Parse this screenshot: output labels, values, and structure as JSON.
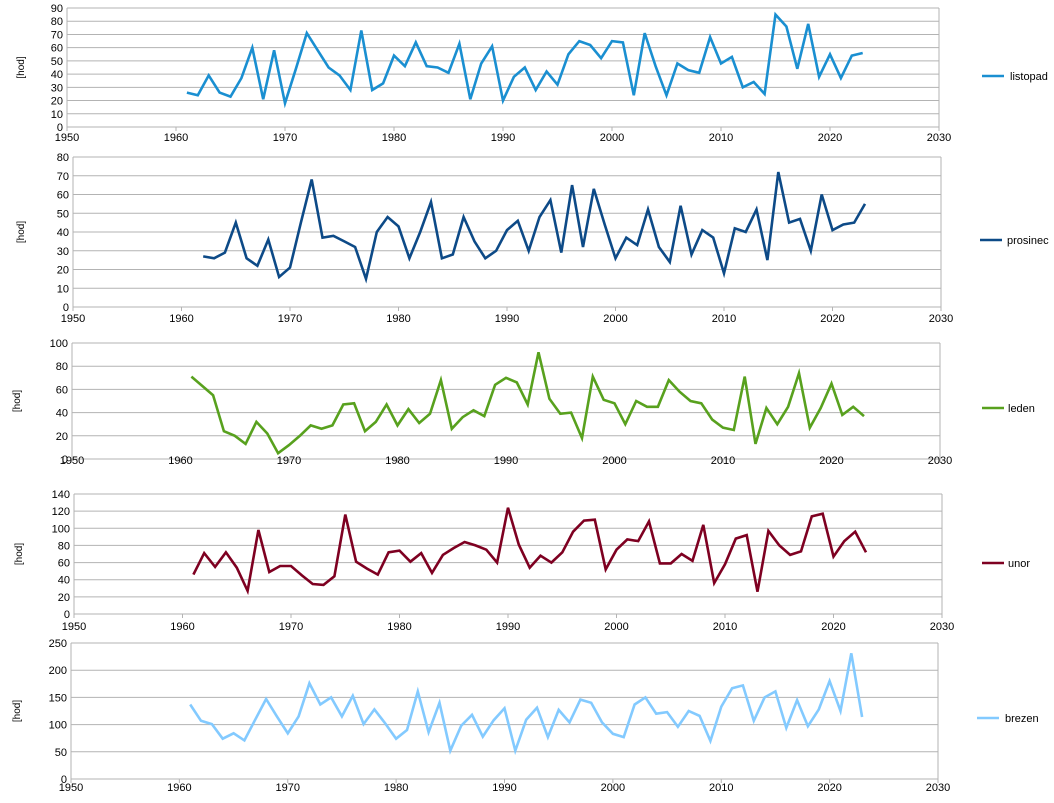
{
  "chart_data": [
    {
      "type": "line",
      "series": [
        {
          "name": "listopad",
          "color": "#1a8fd1",
          "x": [
            1961,
            1962,
            1963,
            1964,
            1965,
            1966,
            1967,
            1968,
            1969,
            1970,
            1971,
            1972,
            1973,
            1974,
            1975,
            1976,
            1977,
            1978,
            1979,
            1980,
            1981,
            1982,
            1983,
            1984,
            1985,
            1986,
            1987,
            1988,
            1989,
            1990,
            1991,
            1992,
            1993,
            1994,
            1995,
            1996,
            1997,
            1998,
            1999,
            2000,
            2001,
            2002,
            2003,
            2004,
            2005,
            2006,
            2007,
            2008,
            2009,
            2010,
            2011,
            2012,
            2013,
            2014,
            2015,
            2016,
            2017,
            2018,
            2019,
            2020,
            2021,
            2022,
            2023
          ],
          "values": [
            26,
            24,
            39,
            26,
            23,
            37,
            60,
            21,
            58,
            18,
            44,
            71,
            58,
            45,
            39,
            28,
            73,
            28,
            33,
            54,
            46,
            64,
            46,
            45,
            41,
            63,
            21,
            48,
            61,
            20,
            38,
            45,
            28,
            42,
            32,
            55,
            65,
            62,
            52,
            65,
            64,
            24,
            71,
            46,
            24,
            48,
            43,
            41,
            68,
            48,
            53,
            30,
            34,
            25,
            85,
            76,
            44,
            78,
            38,
            55,
            37,
            54,
            56
          ]
        }
      ],
      "xlim": [
        1950,
        2030
      ],
      "xticks": [
        1950,
        1960,
        1970,
        1980,
        1990,
        2000,
        2010,
        2020,
        2030
      ],
      "ylim": [
        0,
        90
      ],
      "yticks": [
        0,
        10,
        20,
        30,
        40,
        50,
        60,
        70,
        80,
        90
      ],
      "ylabel": "[hod]",
      "grid": true,
      "legend": "right"
    },
    {
      "type": "line",
      "series": [
        {
          "name": "prosinec",
          "color": "#0d4a87",
          "x": [
            1962,
            1963,
            1964,
            1965,
            1966,
            1967,
            1968,
            1969,
            1970,
            1971,
            1972,
            1973,
            1974,
            1975,
            1976,
            1977,
            1978,
            1979,
            1980,
            1981,
            1982,
            1983,
            1984,
            1985,
            1986,
            1987,
            1988,
            1989,
            1990,
            1991,
            1992,
            1993,
            1994,
            1995,
            1996,
            1997,
            1998,
            1999,
            2000,
            2001,
            2002,
            2003,
            2004,
            2005,
            2006,
            2007,
            2008,
            2009,
            2010,
            2011,
            2012,
            2013,
            2014,
            2015,
            2016,
            2017,
            2018,
            2019,
            2020,
            2021,
            2022,
            2023
          ],
          "values": [
            27,
            26,
            29,
            45,
            26,
            22,
            36,
            16,
            21,
            45,
            68,
            37,
            38,
            35,
            32,
            15,
            40,
            48,
            43,
            26,
            40,
            56,
            26,
            28,
            48,
            35,
            26,
            30,
            41,
            46,
            30,
            48,
            57,
            29,
            65,
            32,
            63,
            44,
            26,
            37,
            33,
            52,
            32,
            24,
            54,
            28,
            41,
            37,
            18,
            42,
            40,
            52,
            25,
            72,
            45,
            47,
            30,
            60,
            41,
            44,
            45,
            55
          ]
        }
      ],
      "xlim": [
        1950,
        2030
      ],
      "xticks": [
        1950,
        1960,
        1970,
        1980,
        1990,
        2000,
        2010,
        2020,
        2030
      ],
      "ylim": [
        0,
        80
      ],
      "yticks": [
        0,
        10,
        20,
        30,
        40,
        50,
        60,
        70,
        80
      ],
      "ylabel": "[hod]",
      "grid": true,
      "legend": "right"
    },
    {
      "type": "line",
      "series": [
        {
          "name": "leden",
          "color": "#58a11e",
          "x": [
            1961,
            1962,
            1963,
            1964,
            1965,
            1966,
            1967,
            1968,
            1969,
            1970,
            1971,
            1972,
            1973,
            1974,
            1975,
            1976,
            1977,
            1978,
            1979,
            1980,
            1981,
            1982,
            1983,
            1984,
            1985,
            1986,
            1987,
            1988,
            1989,
            1990,
            1991,
            1992,
            1993,
            1994,
            1995,
            1996,
            1997,
            1998,
            1999,
            2000,
            2001,
            2002,
            2003,
            2004,
            2005,
            2006,
            2007,
            2008,
            2009,
            2010,
            2011,
            2012,
            2013,
            2014,
            2015,
            2016,
            2017,
            2018,
            2019,
            2020,
            2021,
            2022,
            2023
          ],
          "values": [
            71,
            63,
            55,
            24,
            20,
            13,
            32,
            22,
            5,
            12,
            20,
            29,
            26,
            29,
            47,
            48,
            24,
            32,
            47,
            29,
            43,
            31,
            39,
            68,
            26,
            36,
            42,
            37,
            64,
            70,
            66,
            47,
            92,
            52,
            39,
            40,
            18,
            71,
            51,
            48,
            30,
            50,
            45,
            45,
            68,
            58,
            50,
            48,
            34,
            27,
            25,
            71,
            13,
            44,
            30,
            45,
            74,
            27,
            44,
            65,
            38,
            45,
            37
          ]
        }
      ],
      "xlim": [
        1950,
        2030
      ],
      "xticks": [
        1950,
        1960,
        1970,
        1980,
        1990,
        2000,
        2010,
        2020,
        2030
      ],
      "ylim": [
        0,
        100
      ],
      "yticks": [
        0,
        20,
        40,
        60,
        80,
        100
      ],
      "ylabel": "[hod]",
      "grid": true,
      "legend": "right"
    },
    {
      "type": "line",
      "series": [
        {
          "name": "unor",
          "color": "#7e0021",
          "x": [
            1961,
            1962,
            1963,
            1964,
            1965,
            1966,
            1967,
            1968,
            1969,
            1970,
            1971,
            1972,
            1973,
            1974,
            1975,
            1976,
            1977,
            1978,
            1979,
            1980,
            1981,
            1982,
            1983,
            1984,
            1985,
            1986,
            1987,
            1988,
            1989,
            1990,
            1991,
            1992,
            1993,
            1994,
            1995,
            1996,
            1997,
            1998,
            1999,
            2000,
            2001,
            2002,
            2003,
            2004,
            2005,
            2006,
            2007,
            2008,
            2009,
            2010,
            2011,
            2012,
            2013,
            2014,
            2015,
            2016,
            2017,
            2018,
            2019,
            2020,
            2021,
            2022,
            2023
          ],
          "values": [
            46,
            71,
            55,
            72,
            54,
            27,
            98,
            49,
            56,
            56,
            45,
            35,
            34,
            44,
            116,
            61,
            53,
            46,
            72,
            74,
            61,
            71,
            48,
            69,
            77,
            84,
            80,
            75,
            60,
            124,
            81,
            54,
            68,
            60,
            72,
            96,
            109,
            110,
            52,
            75,
            87,
            85,
            108,
            59,
            59,
            70,
            62,
            104,
            36,
            58,
            88,
            92,
            26,
            97,
            80,
            69,
            73,
            114,
            117,
            67,
            85,
            96,
            72
          ]
        }
      ],
      "xlim": [
        1950,
        2030
      ],
      "xticks": [
        1950,
        1960,
        1970,
        1980,
        1990,
        2000,
        2010,
        2020,
        2030
      ],
      "ylim": [
        0,
        140
      ],
      "yticks": [
        0,
        20,
        40,
        60,
        80,
        100,
        120,
        140
      ],
      "ylabel": "[hod]",
      "grid": true,
      "legend": "right"
    },
    {
      "type": "line",
      "series": [
        {
          "name": "brezen",
          "color": "#83caff",
          "x": [
            1961,
            1962,
            1963,
            1964,
            1965,
            1966,
            1967,
            1968,
            1969,
            1970,
            1971,
            1972,
            1973,
            1974,
            1975,
            1976,
            1977,
            1978,
            1979,
            1980,
            1981,
            1982,
            1983,
            1984,
            1985,
            1986,
            1987,
            1988,
            1989,
            1990,
            1991,
            1992,
            1993,
            1994,
            1995,
            1996,
            1997,
            1998,
            1999,
            2000,
            2001,
            2002,
            2003,
            2004,
            2005,
            2006,
            2007,
            2008,
            2009,
            2010,
            2011,
            2012,
            2013,
            2014,
            2015,
            2016,
            2017,
            2018,
            2019,
            2020,
            2021,
            2022,
            2023
          ],
          "values": [
            137,
            107,
            101,
            74,
            84,
            71,
            109,
            147,
            115,
            84,
            115,
            176,
            137,
            150,
            115,
            153,
            101,
            128,
            102,
            74,
            90,
            161,
            86,
            140,
            52,
            98,
            118,
            78,
            108,
            130,
            52,
            109,
            131,
            77,
            127,
            104,
            146,
            140,
            104,
            83,
            77,
            137,
            150,
            120,
            123,
            96,
            125,
            116,
            70,
            133,
            167,
            172,
            107,
            150,
            161,
            94,
            145,
            97,
            128,
            180,
            125,
            231,
            114
          ]
        }
      ],
      "xlim": [
        1950,
        2030
      ],
      "xticks": [
        1950,
        1960,
        1970,
        1980,
        1990,
        2000,
        2010,
        2020,
        2030
      ],
      "ylim": [
        0,
        250
      ],
      "yticks": [
        0,
        50,
        100,
        150,
        200,
        250
      ],
      "ylabel": "[hod]",
      "grid": true,
      "legend": "right"
    }
  ]
}
